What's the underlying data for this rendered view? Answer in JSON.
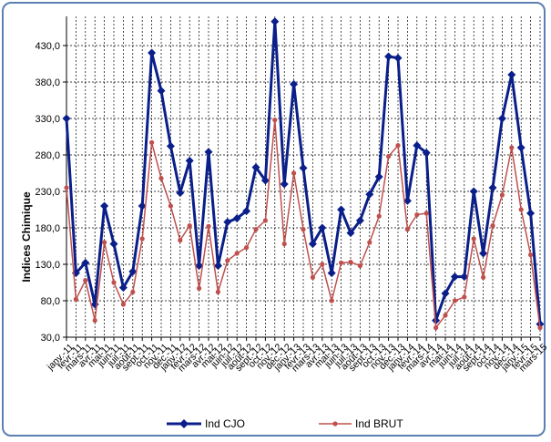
{
  "chart_data": {
    "type": "line",
    "ylabel": "Indices Chimique",
    "xlabel": "",
    "title": "",
    "ylim": [
      30,
      470
    ],
    "yticks": [
      "30,0",
      "80,0",
      "130,0",
      "180,0",
      "230,0",
      "280,0",
      "330,0",
      "380,0",
      "430,0"
    ],
    "grid": true,
    "legend_position": "bottom",
    "categories": [
      "janv.-11",
      "févr.-11",
      "mars-11",
      "avr.-11",
      "mai-11",
      "juin-11",
      "juil.-11",
      "août-11",
      "sept.-11",
      "oct.-11",
      "nov.-11",
      "déc.-11",
      "janv.-12",
      "févr.-12",
      "mars-12",
      "avr.-12",
      "mai-12",
      "juin-12",
      "juil.-12",
      "août-12",
      "sept.-12",
      "oct.-12",
      "nov.-12",
      "déc.-12",
      "janv.-13",
      "févr.-13",
      "mars-13",
      "avr.-13",
      "mai-13",
      "juin-13",
      "juil.-13",
      "août-13",
      "sept.-13",
      "oct.-13",
      "nov.-13",
      "déc.-13",
      "janv.-14",
      "févr.-14",
      "mars-14",
      "avr.-14",
      "mai-14",
      "juin-14",
      "juil.-14",
      "août-14",
      "sept.-14",
      "oct.-14",
      "nov.-14",
      "déc.-14",
      "janv.-15",
      "févr.-15",
      "mars-15"
    ],
    "series": [
      {
        "name": "Ind CJO",
        "color": "#0a1f8a",
        "marker": "diamond",
        "values": [
          330,
          118,
          132,
          75,
          210,
          158,
          98,
          120,
          210,
          420,
          368,
          292,
          228,
          272,
          128,
          284,
          128,
          188,
          193,
          203,
          263,
          245,
          463,
          240,
          377,
          262,
          158,
          180,
          118,
          205,
          173,
          190,
          226,
          250,
          415,
          413,
          217,
          293,
          283,
          53,
          90,
          113,
          113,
          230,
          145,
          235,
          330,
          390,
          290,
          200,
          48
        ]
      },
      {
        "name": "Ind BRUT",
        "color": "#c0504d",
        "marker": "circle",
        "values": [
          235,
          82,
          108,
          53,
          160,
          105,
          75,
          92,
          165,
          297,
          248,
          210,
          163,
          183,
          97,
          182,
          92,
          135,
          145,
          153,
          178,
          190,
          328,
          158,
          255,
          178,
          112,
          130,
          80,
          132,
          133,
          128,
          160,
          196,
          278,
          293,
          178,
          198,
          200,
          43,
          60,
          80,
          85,
          165,
          112,
          183,
          225,
          290,
          205,
          143,
          43
        ]
      }
    ]
  },
  "legend": {
    "items": [
      {
        "label": "Ind CJO",
        "color": "#0a1f8a"
      },
      {
        "label": "Ind BRUT",
        "color": "#c0504d"
      }
    ]
  }
}
